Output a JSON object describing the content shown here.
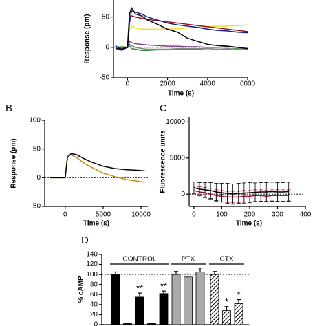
{
  "chart_data": [
    {
      "type": "line",
      "y_label": "Response (pm)",
      "x_label": "Time (s)",
      "x": [
        -600,
        -300,
        0,
        100,
        200,
        400,
        700,
        1000,
        1500,
        2000,
        2500,
        3000,
        3500,
        4000,
        4500,
        5000,
        5500,
        6000
      ],
      "series": [
        {
          "color": "#f0e020",
          "values": [
            -2,
            0,
            0,
            30,
            35,
            32,
            30,
            30,
            30,
            30,
            31,
            32,
            33,
            34,
            35,
            35,
            36,
            37
          ]
        },
        {
          "color": "#3a8a3a",
          "values": [
            0,
            1,
            0,
            3,
            -2,
            -3,
            -5,
            -5,
            -4,
            -4,
            -3,
            -3,
            -3,
            -2,
            -3,
            -3,
            -2,
            -4
          ]
        },
        {
          "color": "#888888",
          "values": [
            -1,
            -2,
            0,
            5,
            3,
            0,
            -2,
            -3,
            -3,
            -3,
            -2,
            -2,
            -2,
            -2,
            -3,
            -2,
            -3,
            -3
          ]
        },
        {
          "color": "#7b3f8c",
          "values": [
            3,
            -5,
            0,
            10,
            8,
            6,
            5,
            4,
            3,
            2,
            2,
            1,
            1,
            0,
            0,
            1,
            0,
            -2
          ]
        },
        {
          "color": "#8b1a1a",
          "values": [
            0,
            0,
            0,
            45,
            52,
            50,
            48,
            46,
            44,
            42,
            40,
            38,
            36,
            34,
            32,
            30,
            28,
            26
          ]
        },
        {
          "color": "#1a1a8c",
          "values": [
            2,
            -3,
            0,
            40,
            60,
            58,
            55,
            50,
            45,
            40,
            37,
            35,
            33,
            30,
            28,
            27,
            25,
            24
          ]
        },
        {
          "color": "#000000",
          "values": [
            -2,
            -3,
            0,
            55,
            65,
            55,
            52,
            45,
            38,
            30,
            25,
            15,
            10,
            5,
            3,
            2,
            0,
            -2
          ]
        }
      ],
      "xlim": [
        -700,
        6000
      ],
      "xticks": [
        0,
        2000,
        4000,
        6000
      ],
      "ylim": [
        -50,
        78
      ],
      "yticks": [
        -50,
        0,
        50
      ],
      "hline": 0
    },
    {
      "type": "line",
      "panel": "B",
      "y_label": "Response (pm)",
      "x_label": "Time (s)",
      "x": [
        -2000,
        -500,
        0,
        300,
        800,
        1500,
        2500,
        3500,
        5000,
        6500,
        8000,
        9500,
        10500
      ],
      "series": [
        {
          "color": "#c8860a",
          "values": [
            0,
            0,
            0,
            38,
            40,
            35,
            25,
            18,
            8,
            2,
            -3,
            -6,
            -8
          ]
        },
        {
          "color": "#000000",
          "values": [
            0,
            0,
            0,
            35,
            42,
            40,
            33,
            27,
            20,
            16,
            14,
            13,
            12
          ]
        }
      ],
      "xlim": [
        -2700,
        10900
      ],
      "xticks": [
        0,
        5000,
        10000
      ],
      "ylim": [
        -50,
        100
      ],
      "yticks": [
        -50,
        0,
        50,
        100
      ],
      "hline": 0
    },
    {
      "type": "errorline",
      "panel": "C",
      "y_label": "Fluorescence units",
      "x_label": "Time (s)",
      "x": [
        0,
        20,
        40,
        60,
        80,
        100,
        120,
        140,
        160,
        180,
        200,
        220,
        240,
        260,
        280,
        300,
        320,
        340
      ],
      "series": [
        {
          "color": "#b01030",
          "values": [
            500,
            300,
            200,
            0,
            -200,
            -300,
            -400,
            -400,
            -400,
            -300,
            -300,
            -200,
            -200,
            -300,
            -200,
            -200,
            -200,
            -200
          ],
          "errors": [
            600,
            700,
            700,
            800,
            800,
            800,
            800,
            800,
            800,
            800,
            800,
            800,
            800,
            800,
            800,
            800,
            800,
            800
          ]
        },
        {
          "color": "#000000",
          "values": [
            900,
            700,
            600,
            500,
            300,
            200,
            100,
            0,
            100,
            150,
            200,
            250,
            300,
            300,
            350,
            300,
            300,
            350
          ],
          "errors": [
            800,
            900,
            1000,
            1100,
            1200,
            1300,
            1400,
            1400,
            1400,
            1400,
            1400,
            1300,
            1300,
            1300,
            1300,
            1300,
            1300,
            1300
          ]
        }
      ],
      "xlim": [
        -17,
        400
      ],
      "xticks": [
        0,
        100,
        200,
        300,
        400
      ],
      "ylim": [
        -1700,
        10700
      ],
      "yticks": [
        0,
        5000,
        10000
      ],
      "hline": 0
    },
    {
      "type": "bar",
      "panel": "D",
      "y_label": "% cAMP",
      "groups": [
        {
          "name": "CONTROL",
          "color": "#000000",
          "hatch": false,
          "values": [
            100,
            2,
            55,
            2,
            62
          ],
          "errors": [
            5,
            0.5,
            8,
            0.5,
            5
          ],
          "significance": [
            null,
            null,
            "**",
            null,
            "**"
          ]
        },
        {
          "name": "PTX",
          "color": "#aaaaaa",
          "hatch": false,
          "values": [
            100,
            95,
            105
          ],
          "errors": [
            6,
            6,
            8
          ],
          "significance": [
            null,
            null,
            null
          ]
        },
        {
          "name": "CTX",
          "color": "#ffffff",
          "hatch": true,
          "values": [
            100,
            28,
            42
          ],
          "errors": [
            6,
            8,
            8
          ],
          "significance": [
            null,
            "*",
            "*"
          ]
        }
      ],
      "ylim": [
        0,
        140
      ],
      "yticks": [
        0,
        20,
        40,
        60,
        80,
        100,
        120,
        140
      ],
      "hline": 100
    }
  ]
}
